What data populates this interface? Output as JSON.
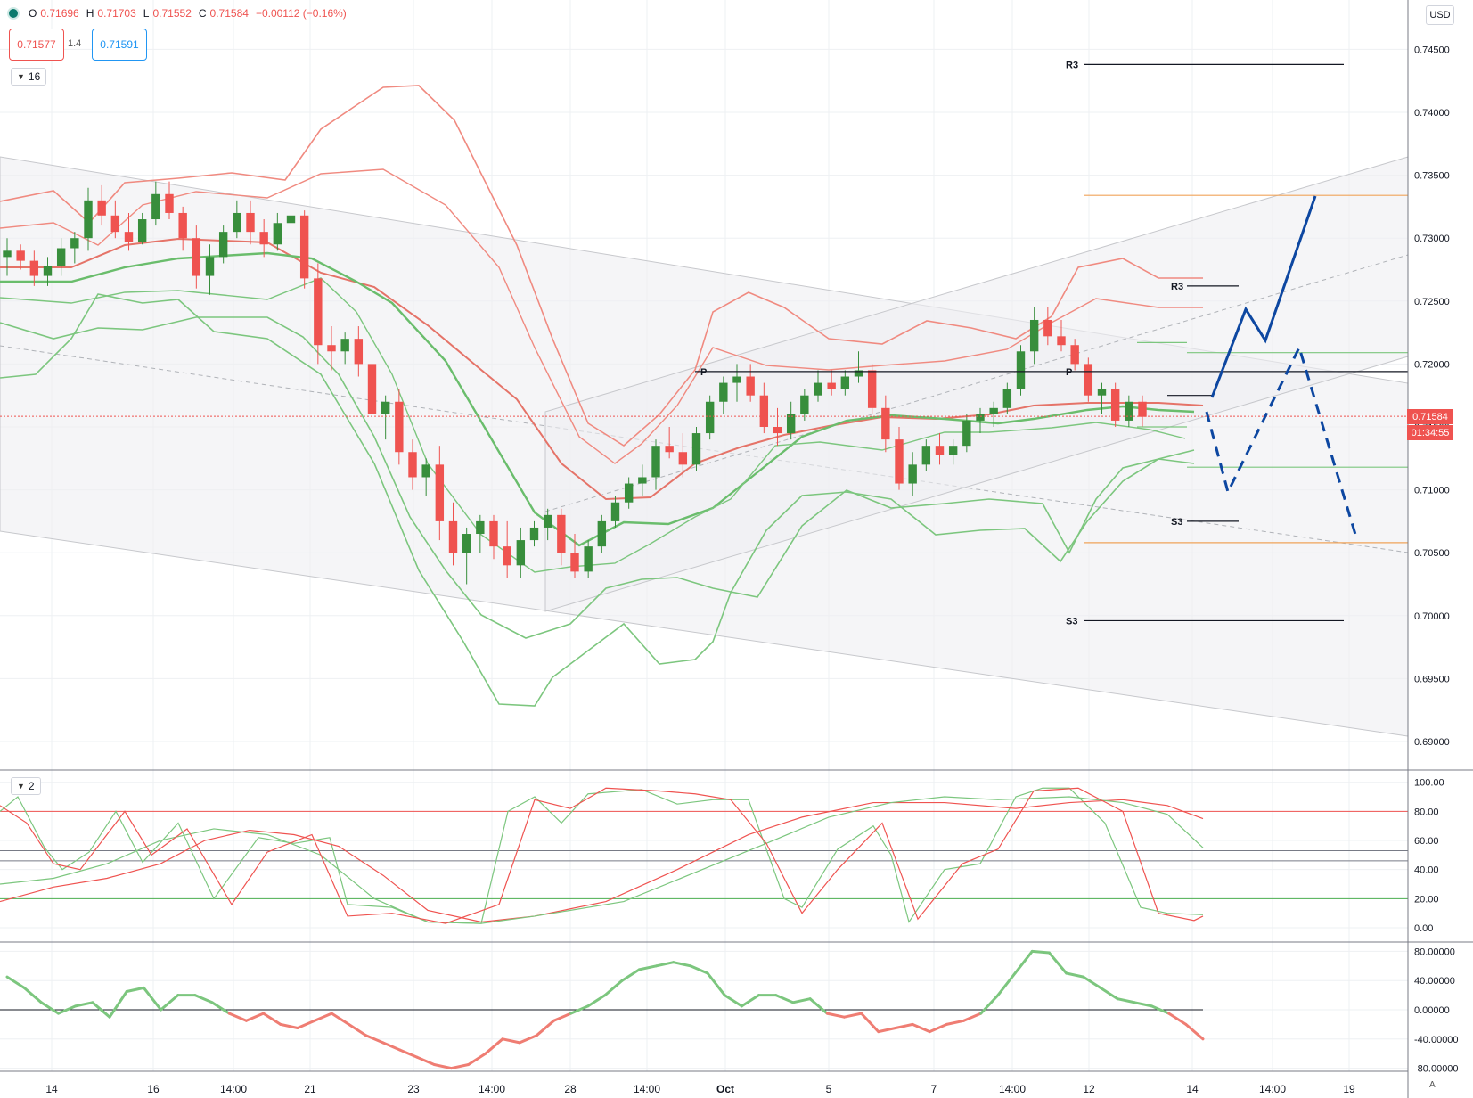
{
  "symbol": {
    "ohlc": {
      "o_label": "O",
      "o": "0.71696",
      "h_label": "H",
      "h": "0.71703",
      "l_label": "L",
      "l": "0.71552",
      "c_label": "C",
      "c": "0.71584",
      "change": "−0.00112 (−0.16%)"
    },
    "sell_price": "0.71577",
    "spread": "1.4",
    "buy_price": "0.71591"
  },
  "indicators_toggle": {
    "count": "16"
  },
  "oscillator_toggle": {
    "count": "2"
  },
  "currency": "USD",
  "last_price": {
    "value": "0.71584",
    "countdown": "01:34:55",
    "color": "#ef5350"
  },
  "auto_scale_label": "A",
  "colors": {
    "up_candle": "#388e3c",
    "down_candle": "#ef5350",
    "bb_red": "#f08a80",
    "bb_green": "#7cc67e",
    "projection": "#0d47a1",
    "pivot_orange": "#f0a45a",
    "channel_fill": "#efeff1"
  },
  "price_axis": {
    "labels": [
      "0.74500",
      "0.74000",
      "0.73500",
      "0.73000",
      "0.72500",
      "0.72000",
      "0.71500",
      "0.71000",
      "0.70500",
      "0.70000",
      "0.69500",
      "0.69000"
    ]
  },
  "stoch_axis": {
    "labels": [
      "100.00",
      "80.00",
      "60.00",
      "40.00",
      "20.00",
      "0.00"
    ]
  },
  "osc_axis": {
    "labels": [
      "80.00000",
      "40.00000",
      "0.00000",
      "-40.00000",
      "-80.00000"
    ]
  },
  "time_axis": {
    "labels": [
      "14",
      "16",
      "14:00",
      "21",
      "23",
      "14:00",
      "28",
      "14:00",
      "Oct",
      "5",
      "7",
      "14:00",
      "12",
      "14",
      "14:00",
      "19"
    ]
  },
  "pivot_labels": {
    "r3_weekly": "R3",
    "s3_weekly": "S3",
    "r3_daily": "R3",
    "s3_daily": "S3",
    "p_daily": "P",
    "p_left": "P"
  },
  "icons": [
    "symbol-status-icon",
    "chevron-down-icon"
  ]
}
